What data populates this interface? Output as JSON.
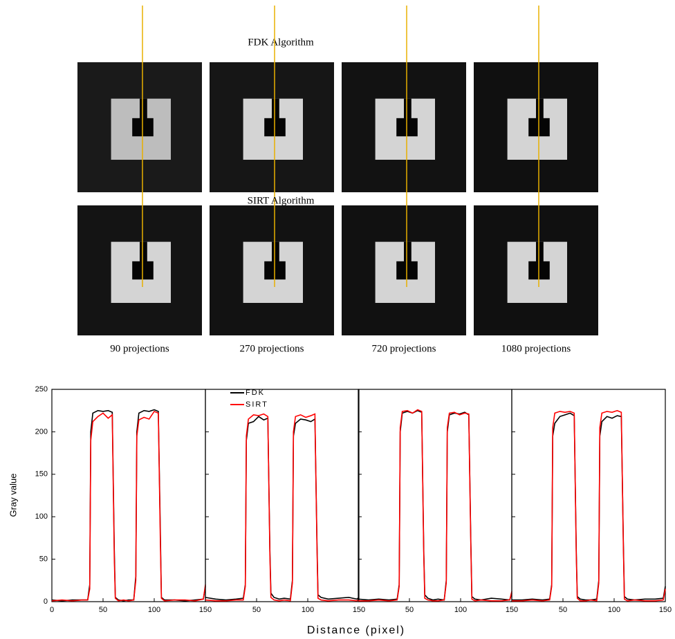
{
  "figure": {
    "fdk_title": "FDK Algorithm",
    "sirt_title": "SIRT Algorithm",
    "columns": [
      "90 projections",
      "270 projections",
      "720 projections",
      "1080 projections"
    ],
    "xlabel": "Distance (pixel)",
    "ylabel": "Gray value"
  },
  "chart_data": [
    {
      "type": "line",
      "xlim": [
        0,
        150
      ],
      "xticks": [
        0,
        50,
        100,
        150
      ],
      "ylim": [
        0,
        250
      ],
      "yticks": [
        0,
        50,
        100,
        150,
        200,
        250
      ],
      "x": [
        0,
        10,
        20,
        30,
        35,
        37,
        38,
        40,
        45,
        50,
        55,
        59,
        61,
        62,
        65,
        70,
        75,
        80,
        82,
        83,
        85,
        90,
        95,
        100,
        104,
        106,
        107,
        110,
        120,
        130,
        140,
        148,
        150
      ],
      "series": [
        {
          "color": "#000000",
          "values": [
            2,
            1,
            2,
            2,
            2,
            20,
            200,
            222,
            225,
            224,
            225,
            223,
            60,
            5,
            2,
            1,
            2,
            2,
            30,
            200,
            222,
            225,
            224,
            226,
            224,
            80,
            5,
            2,
            2,
            1,
            2,
            3,
            18
          ]
        },
        {
          "color": "#ff0000",
          "values": [
            1,
            2,
            1,
            2,
            2,
            15,
            190,
            212,
            218,
            222,
            216,
            220,
            50,
            4,
            1,
            2,
            1,
            2,
            25,
            195,
            214,
            217,
            215,
            224,
            222,
            70,
            4,
            1,
            2,
            2,
            1,
            3,
            20
          ]
        }
      ]
    },
    {
      "type": "line",
      "xlim": [
        0,
        150
      ],
      "xticks": [
        50,
        100,
        150
      ],
      "x": [
        0,
        10,
        20,
        30,
        37,
        39,
        40,
        42,
        47,
        52,
        57,
        61,
        63,
        64,
        67,
        72,
        77,
        83,
        85,
        86,
        88,
        93,
        98,
        103,
        107,
        109,
        110,
        113,
        120,
        130,
        140,
        148,
        150
      ],
      "series": [
        {
          "name": "FDK",
          "color": "#000000",
          "values": [
            5,
            3,
            2,
            3,
            4,
            20,
            190,
            210,
            212,
            218,
            214,
            216,
            60,
            10,
            5,
            3,
            4,
            3,
            25,
            195,
            210,
            215,
            214,
            212,
            215,
            70,
            8,
            5,
            3,
            4,
            5,
            3,
            5
          ]
        },
        {
          "name": "SIRT",
          "color": "#ff0000",
          "values": [
            2,
            1,
            1,
            2,
            2,
            18,
            195,
            215,
            220,
            219,
            221,
            218,
            55,
            5,
            2,
            1,
            2,
            1,
            22,
            200,
            218,
            220,
            217,
            219,
            221,
            65,
            4,
            2,
            1,
            2,
            2,
            1,
            3
          ]
        }
      ]
    },
    {
      "type": "line",
      "xlim": [
        0,
        150
      ],
      "xticks": [
        50,
        100,
        150
      ],
      "x": [
        0,
        10,
        20,
        30,
        38,
        40,
        41,
        43,
        48,
        53,
        58,
        62,
        64,
        65,
        68,
        73,
        78,
        84,
        86,
        87,
        89,
        94,
        99,
        104,
        108,
        110,
        111,
        114,
        120,
        130,
        140,
        148,
        150
      ],
      "series": [
        {
          "color": "#000000",
          "values": [
            3,
            2,
            3,
            2,
            3,
            20,
            200,
            222,
            224,
            222,
            225,
            223,
            60,
            8,
            4,
            2,
            3,
            2,
            25,
            200,
            220,
            222,
            221,
            223,
            220,
            70,
            6,
            3,
            2,
            4,
            3,
            2,
            10
          ]
        },
        {
          "color": "#ff0000",
          "values": [
            1,
            1,
            2,
            1,
            2,
            18,
            205,
            224,
            225,
            222,
            226,
            224,
            55,
            4,
            2,
            1,
            1,
            2,
            22,
            205,
            222,
            223,
            220,
            222,
            221,
            65,
            3,
            1,
            2,
            1,
            1,
            2,
            12
          ]
        }
      ]
    },
    {
      "type": "line",
      "xlim": [
        0,
        150
      ],
      "xticks": [
        50,
        100,
        150
      ],
      "x": [
        0,
        10,
        20,
        30,
        37,
        39,
        40,
        42,
        47,
        52,
        57,
        61,
        63,
        64,
        67,
        72,
        77,
        83,
        85,
        86,
        88,
        93,
        98,
        103,
        107,
        109,
        110,
        113,
        120,
        130,
        140,
        148,
        150
      ],
      "series": [
        {
          "color": "#000000",
          "values": [
            2,
            2,
            3,
            2,
            3,
            20,
            195,
            210,
            218,
            220,
            222,
            219,
            60,
            6,
            3,
            2,
            2,
            3,
            25,
            195,
            212,
            218,
            216,
            219,
            218,
            70,
            6,
            3,
            2,
            3,
            3,
            4,
            18
          ]
        },
        {
          "color": "#ff0000",
          "values": [
            1,
            1,
            2,
            1,
            2,
            18,
            205,
            222,
            224,
            223,
            224,
            222,
            55,
            4,
            1,
            1,
            2,
            1,
            22,
            205,
            222,
            224,
            223,
            225,
            223,
            65,
            3,
            1,
            2,
            1,
            1,
            2,
            15
          ]
        }
      ]
    }
  ]
}
